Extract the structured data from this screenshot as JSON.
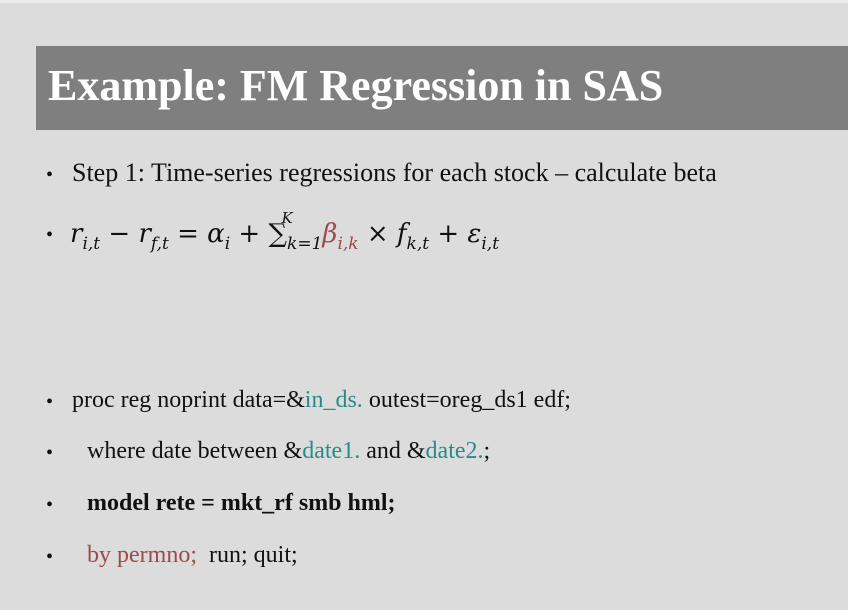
{
  "slide": {
    "title": "Example: FM Regression in SAS",
    "bullets": [
      {
        "text": "Step 1: Time-series regressions for each stock – calculate beta"
      },
      {
        "formula": {
          "r": "r",
          "r_sub": "i,t",
          "minus": "−",
          "rf": "r",
          "rf_sub": "f,t",
          "eq": "=",
          "alpha": "α",
          "alpha_sub": "i",
          "plus1": "+",
          "sum": "∑",
          "sum_sub": "k=1",
          "sum_sup": "K",
          "beta": "β",
          "beta_sub": "i,k",
          "times": "×",
          "f": "f",
          "f_sub": "k,t",
          "plus2": "+",
          "eps": "ε",
          "eps_sub": "i,t"
        }
      },
      {
        "part1": "proc reg noprint data=&",
        "part2": "in_ds.",
        "part3": " outest=oreg_ds1 edf;"
      },
      {
        "part1": "where date between &",
        "part2": "date1.",
        "part3": " and &",
        "part4": "date2.",
        "part5": ";"
      },
      {
        "text": "model rete = mkt_rf smb hml;"
      },
      {
        "part1": "by permno;",
        "part2": "  run; quit;"
      }
    ],
    "bullet_char": "•"
  },
  "colors": {
    "title_bar": "#7f7f7f",
    "background": "#dcdcdc",
    "teal": "#2a8a8a",
    "maroon": "#9b4b4b"
  }
}
